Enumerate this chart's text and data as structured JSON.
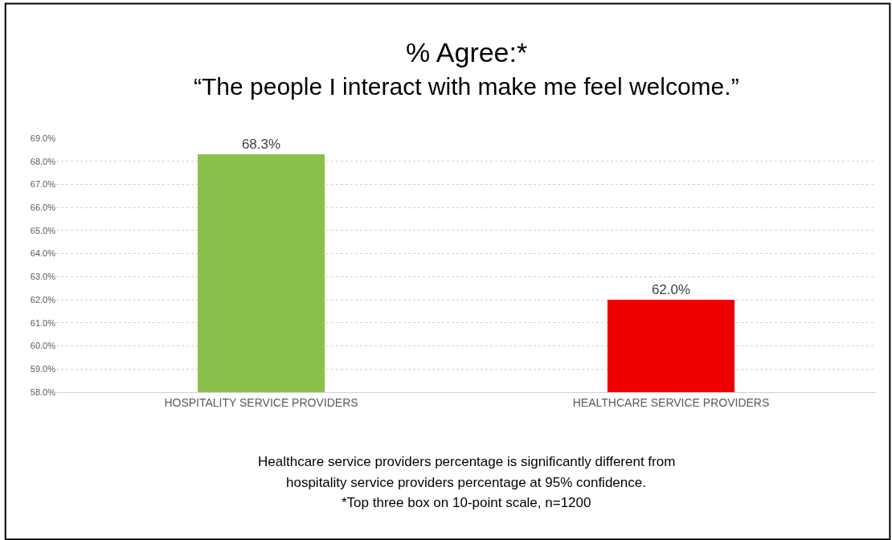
{
  "chart_data": {
    "type": "bar",
    "title": "% Agree:*",
    "subtitle": "“The people I interact with make me feel welcome.”",
    "categories": [
      "HOSPITALITY SERVICE PROVIDERS",
      "HEALTHCARE SERVICE PROVIDERS"
    ],
    "values": [
      68.3,
      62.0
    ],
    "colors": [
      "#8bc04a",
      "#ee0000"
    ],
    "value_labels": [
      "68.3%",
      "62.0%"
    ],
    "ylim": [
      58,
      69
    ],
    "yticks": [
      {
        "value": 58,
        "label": "58.0%"
      },
      {
        "value": 59,
        "label": "59.0%"
      },
      {
        "value": 60,
        "label": "60.0%"
      },
      {
        "value": 61,
        "label": "61.0%"
      },
      {
        "value": 62,
        "label": "62.0%"
      },
      {
        "value": 63,
        "label": "63.0%"
      },
      {
        "value": 64,
        "label": "64.0%"
      },
      {
        "value": 65,
        "label": "65.0%"
      },
      {
        "value": 66,
        "label": "66.0%"
      },
      {
        "value": 67,
        "label": "67.0%"
      },
      {
        "value": 68,
        "label": "68.0%"
      },
      {
        "value": 69,
        "label": "69.0%"
      }
    ],
    "grid": "y",
    "legend": false,
    "annotations": [
      "Healthcare service providers percentage is significantly different from",
      "hospitality service providers percentage at 95% confidence.",
      "*Top three box on 10-point scale, n=1200"
    ]
  }
}
